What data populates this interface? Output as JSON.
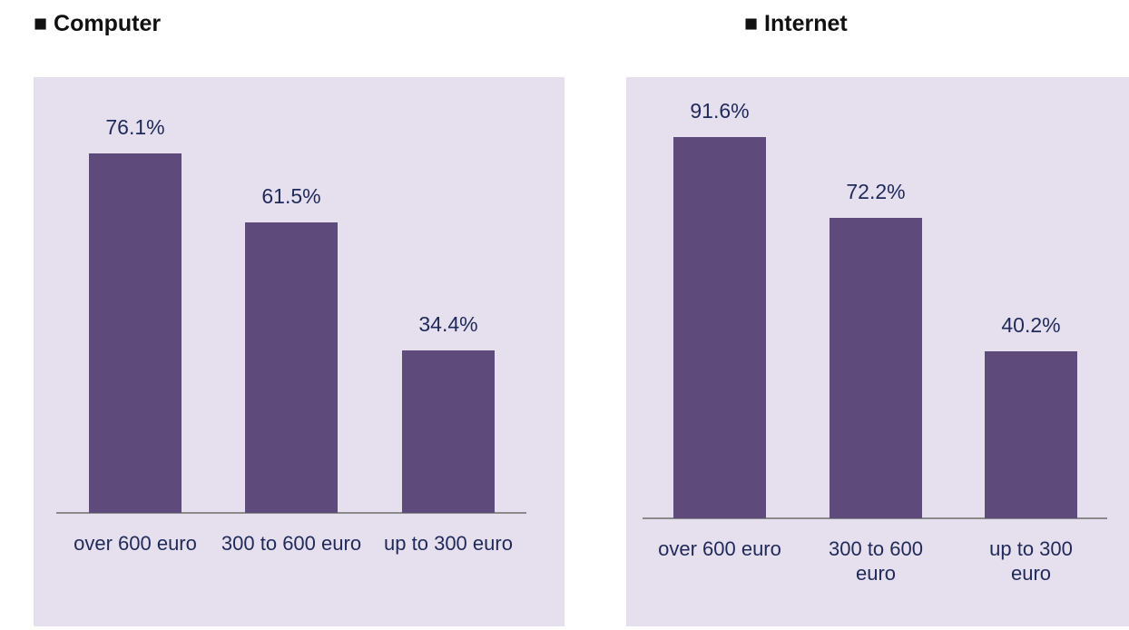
{
  "chart_data": [
    {
      "type": "bar",
      "title": "■ Computer",
      "categories": [
        "over 600 euro",
        "300 to 600 euro",
        "up to 300 euro"
      ],
      "values": [
        76.1,
        61.5,
        34.4
      ],
      "value_labels": [
        "76.1%",
        "61.5%",
        "34.4%"
      ],
      "color": "#5f4b7b"
    },
    {
      "type": "bar",
      "title": "■ Internet",
      "categories": [
        "over 600 euro",
        "300 to 600 euro",
        "up to 300 euro"
      ],
      "values": [
        91.6,
        72.2,
        40.2
      ],
      "value_labels": [
        "91.6%",
        "72.2%",
        "40.2%"
      ],
      "color": "#5f4b7b"
    }
  ]
}
